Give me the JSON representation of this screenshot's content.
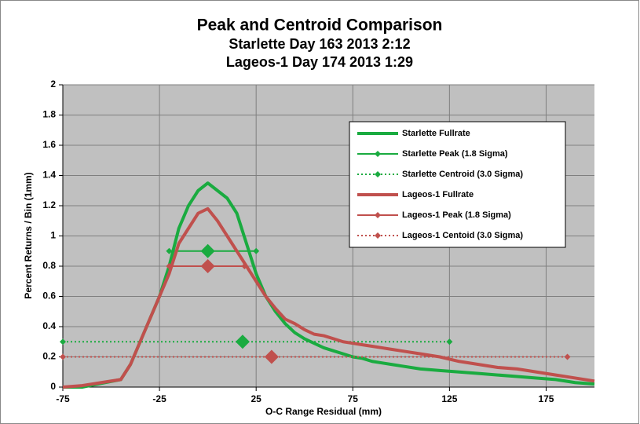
{
  "chart_data": {
    "type": "line",
    "title": "Peak and Centroid Comparison",
    "subtitle": [
      "Starlette Day 163 2013 2:12",
      "Lageos-1 Day 174 2013 1:29"
    ],
    "x_label": "O-C Range Residual (mm)",
    "y_label": "Percent Returns / Bin (1mm)",
    "xlim": [
      -75,
      200
    ],
    "xticks": [
      -75,
      -25,
      25,
      75,
      125,
      175
    ],
    "ylim": [
      0,
      2
    ],
    "yticks": [
      0,
      0.2,
      0.4,
      0.6,
      0.8,
      1,
      1.2,
      1.4,
      1.6,
      1.8,
      2
    ],
    "grid": true,
    "legend": "upper right",
    "series": [
      {
        "name": "Starlette Fullrate",
        "color": "#1aab40",
        "marker": "none",
        "dash": false,
        "x": [
          -75,
          -65,
          -45,
          -40,
          -35,
          -30,
          -25,
          -20,
          -15,
          -10,
          -5,
          0,
          5,
          10,
          15,
          20,
          25,
          30,
          35,
          40,
          45,
          50,
          55,
          60,
          65,
          70,
          75,
          80,
          85,
          90,
          95,
          100,
          110,
          120,
          130,
          140,
          150,
          160,
          170,
          180,
          190,
          200
        ],
        "values": [
          0,
          0,
          0.05,
          0.15,
          0.3,
          0.45,
          0.6,
          0.8,
          1.05,
          1.2,
          1.3,
          1.35,
          1.3,
          1.25,
          1.15,
          0.95,
          0.75,
          0.6,
          0.5,
          0.42,
          0.36,
          0.32,
          0.29,
          0.26,
          0.24,
          0.22,
          0.2,
          0.19,
          0.17,
          0.16,
          0.15,
          0.14,
          0.12,
          0.11,
          0.1,
          0.09,
          0.08,
          0.07,
          0.06,
          0.05,
          0.03,
          0.02
        ]
      },
      {
        "name": "Starlette Peak (1.8 Sigma)",
        "color": "#1aab40",
        "marker": "diamond",
        "dash": false,
        "x": [
          -20,
          0,
          25
        ],
        "values": [
          0.9,
          0.9,
          0.9
        ]
      },
      {
        "name": "Starlette Centroid  (3.0 Sigma)",
        "color": "#1aab40",
        "marker": "diamond",
        "dash": true,
        "x": [
          -75,
          18,
          125
        ],
        "values": [
          0.3,
          0.3,
          0.3
        ]
      },
      {
        "name": "Lageos-1 Fullrate",
        "color": "#c0504d",
        "marker": "none",
        "dash": false,
        "x": [
          -75,
          -65,
          -45,
          -40,
          -35,
          -30,
          -25,
          -20,
          -15,
          -10,
          -5,
          0,
          5,
          10,
          15,
          20,
          25,
          30,
          35,
          40,
          45,
          50,
          55,
          60,
          65,
          70,
          75,
          80,
          85,
          90,
          95,
          100,
          110,
          120,
          130,
          140,
          150,
          160,
          170,
          180,
          190,
          200
        ],
        "values": [
          0,
          0.01,
          0.05,
          0.15,
          0.3,
          0.45,
          0.6,
          0.75,
          0.95,
          1.05,
          1.15,
          1.18,
          1.1,
          1.0,
          0.9,
          0.8,
          0.7,
          0.6,
          0.52,
          0.45,
          0.42,
          0.38,
          0.35,
          0.34,
          0.32,
          0.3,
          0.29,
          0.28,
          0.27,
          0.26,
          0.25,
          0.24,
          0.22,
          0.2,
          0.17,
          0.15,
          0.13,
          0.12,
          0.1,
          0.08,
          0.06,
          0.04
        ]
      },
      {
        "name": "Lageos-1 Peak (1.8 Sigma)",
        "color": "#c0504d",
        "marker": "diamond",
        "dash": false,
        "x": [
          -20,
          0,
          19
        ],
        "values": [
          0.8,
          0.8,
          0.8
        ]
      },
      {
        "name": "Lageos-1 Centoid  (3.0 Sigma)",
        "color": "#c0504d",
        "marker": "diamond",
        "dash": true,
        "x": [
          -75,
          33,
          186
        ],
        "values": [
          0.2,
          0.2,
          0.2
        ]
      }
    ]
  }
}
